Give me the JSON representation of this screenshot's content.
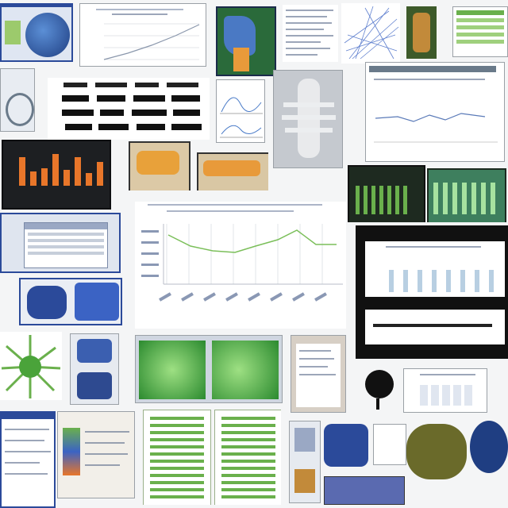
{
  "colors": {
    "accent_green": "#6ab04c",
    "accent_blue": "#2b4a9a",
    "accent_orange": "#e8762a",
    "dark_frame": "#1d1f22",
    "line_green": "#7bbf5a"
  },
  "tiles": [
    {
      "name": "tile-map-screen",
      "icon": "globe-icon"
    },
    {
      "name": "tile-line-chart-small",
      "icon": "chart-icon"
    },
    {
      "name": "tile-photo-scan",
      "icon": "image-icon"
    },
    {
      "name": "tile-text-document",
      "icon": "document-icon"
    },
    {
      "name": "tile-blue-network",
      "icon": "network-icon"
    },
    {
      "name": "tile-green-table",
      "icon": "table-icon"
    },
    {
      "name": "tile-redacted-list",
      "icon": "list-icon"
    },
    {
      "name": "tile-xray-spine",
      "icon": "xray-icon"
    },
    {
      "name": "tile-report-graph",
      "icon": "chart-icon"
    },
    {
      "name": "tile-orange-bar-chart",
      "icon": "bar-chart-icon"
    },
    {
      "name": "tile-anatomy-slides",
      "icon": "image-icon"
    },
    {
      "name": "tile-green-bars-screens",
      "icon": "bar-chart-icon"
    },
    {
      "name": "tile-center-line-chart",
      "icon": "line-chart-icon"
    },
    {
      "name": "tile-framed-bar-chart",
      "icon": "bar-chart-icon"
    },
    {
      "name": "tile-green-radial",
      "icon": "radial-icon"
    },
    {
      "name": "tile-green-scan-screens",
      "icon": "monitor-icon"
    },
    {
      "name": "tile-green-list-sheets",
      "icon": "document-icon"
    },
    {
      "name": "tile-blue-models",
      "icon": "model-icon"
    }
  ]
}
